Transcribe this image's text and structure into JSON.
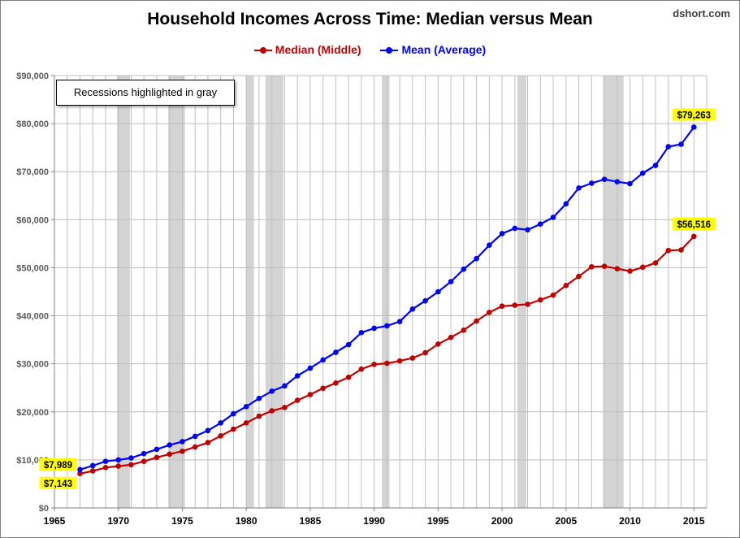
{
  "title": "Household Incomes Across Time: Median versus Mean",
  "source": "dshort.com",
  "note": "Recessions highlighted in gray",
  "colors": {
    "median": "#c00000",
    "mean": "#0000ff",
    "recession": "#d4d4d4",
    "label_bg": "#ffff00",
    "grid": "#bfbfbf"
  },
  "chart_data": {
    "type": "line",
    "title": "Household Incomes Across Time: Median versus Mean",
    "xlim": [
      1965,
      2016
    ],
    "ylim": [
      0,
      90000
    ],
    "x_ticks": [
      1965,
      1970,
      1975,
      1980,
      1985,
      1990,
      1995,
      2000,
      2005,
      2010,
      2015
    ],
    "y_ticks": [
      0,
      10000,
      20000,
      30000,
      40000,
      50000,
      60000,
      70000,
      80000,
      90000
    ],
    "y_tick_labels": [
      "$0",
      "$10,000",
      "$20,000",
      "$30,000",
      "$40,000",
      "$50,000",
      "$60,000",
      "$70,000",
      "$80,000",
      "$90,000"
    ],
    "grid": "vertical lines each year, horizontal lines every $10,000",
    "legend_position": "top",
    "recessions": [
      [
        1969.9,
        1970.9
      ],
      [
        1973.9,
        1975.2
      ],
      [
        1980.0,
        1980.6
      ],
      [
        1981.5,
        1982.9
      ],
      [
        1990.6,
        1991.2
      ],
      [
        2001.2,
        2001.9
      ],
      [
        2007.9,
        2009.5
      ]
    ],
    "x": [
      1967,
      1968,
      1969,
      1970,
      1971,
      1972,
      1973,
      1974,
      1975,
      1976,
      1977,
      1978,
      1979,
      1980,
      1981,
      1982,
      1983,
      1984,
      1985,
      1986,
      1987,
      1988,
      1989,
      1990,
      1991,
      1992,
      1993,
      1994,
      1995,
      1996,
      1997,
      1998,
      1999,
      2000,
      2001,
      2002,
      2003,
      2004,
      2005,
      2006,
      2007,
      2008,
      2009,
      2010,
      2011,
      2012,
      2013,
      2014,
      2015
    ],
    "series": [
      {
        "name": "Median (Middle)",
        "values": [
          7143,
          7700,
          8400,
          8700,
          9000,
          9700,
          10500,
          11200,
          11800,
          12700,
          13600,
          15000,
          16400,
          17700,
          19100,
          20200,
          20900,
          22400,
          23600,
          24900,
          26000,
          27200,
          28900,
          29900,
          30100,
          30600,
          31200,
          32300,
          34100,
          35500,
          37000,
          38900,
          40700,
          42000,
          42200,
          42400,
          43300,
          44300,
          46300,
          48200,
          50200,
          50300,
          49800,
          49300,
          50100,
          51000,
          53600,
          53700,
          56516
        ]
      },
      {
        "name": "Mean (Average)",
        "values": [
          7989,
          8800,
          9700,
          10000,
          10400,
          11300,
          12200,
          13100,
          13800,
          14900,
          16100,
          17700,
          19600,
          21100,
          22800,
          24300,
          25400,
          27500,
          29100,
          30800,
          32400,
          34000,
          36500,
          37400,
          37900,
          38800,
          41400,
          43100,
          45000,
          47100,
          49700,
          51900,
          54700,
          57100,
          58200,
          57900,
          59100,
          60500,
          63300,
          66600,
          67600,
          68400,
          67900,
          67500,
          69700,
          71300,
          75200,
          75700,
          79263
        ]
      }
    ],
    "annotations": [
      {
        "text": "$79,263",
        "x": 2015,
        "y": 79263,
        "series": "Mean (Average)"
      },
      {
        "text": "$56,516",
        "x": 2015,
        "y": 56516,
        "series": "Median (Middle)"
      },
      {
        "text": "$7,989",
        "x": 1967,
        "y": 7989,
        "series": "Mean (Average)"
      },
      {
        "text": "$7,143",
        "x": 1967,
        "y": 7143,
        "series": "Median (Middle)"
      }
    ]
  }
}
